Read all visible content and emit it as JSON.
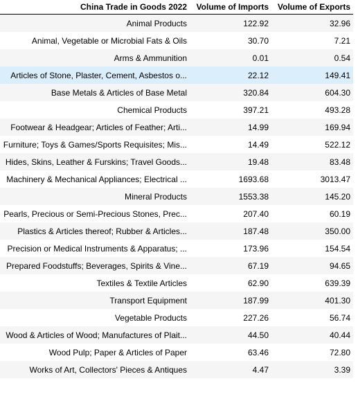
{
  "table": {
    "columns": [
      "China Trade in Goods 2022",
      "Volume of Imports",
      "Volume of Exports"
    ],
    "highlight_row": 3,
    "rows": [
      {
        "name": "Animal Products",
        "imports": "122.92",
        "exports": "32.96"
      },
      {
        "name": "Animal, Vegetable or Microbial Fats & Oils",
        "imports": "30.70",
        "exports": "7.21"
      },
      {
        "name": "Arms & Ammunition",
        "imports": "0.01",
        "exports": "0.54"
      },
      {
        "name": "Articles of Stone, Plaster, Cement, Asbestos o...",
        "imports": "22.12",
        "exports": "149.41"
      },
      {
        "name": "Base Metals & Articles of Base Metal",
        "imports": "320.84",
        "exports": "604.30"
      },
      {
        "name": "Chemical Products",
        "imports": "397.21",
        "exports": "493.28"
      },
      {
        "name": "Footwear & Headgear; Articles of Feather; Arti...",
        "imports": "14.99",
        "exports": "169.94"
      },
      {
        "name": "Furniture; Toys & Games/Sports Requisites; Mis...",
        "imports": "14.49",
        "exports": "522.12"
      },
      {
        "name": "Hides, Skins, Leather & Furskins; Travel Goods...",
        "imports": "19.48",
        "exports": "83.48"
      },
      {
        "name": "Machinery & Mechanical Appliances; Electrical ...",
        "imports": "1693.68",
        "exports": "3013.47"
      },
      {
        "name": "Mineral Products",
        "imports": "1553.38",
        "exports": "145.20"
      },
      {
        "name": "Pearls, Precious or Semi-Precious Stones, Prec...",
        "imports": "207.40",
        "exports": "60.19"
      },
      {
        "name": "Plastics & Articles thereof; Rubber & Articles...",
        "imports": "187.48",
        "exports": "350.00"
      },
      {
        "name": "Precision or Medical Instruments & Apparatus; ...",
        "imports": "173.96",
        "exports": "154.54"
      },
      {
        "name": "Prepared Foodstuffs; Beverages, Spirits & Vine...",
        "imports": "67.19",
        "exports": "94.65"
      },
      {
        "name": "Textiles & Textile Articles",
        "imports": "62.90",
        "exports": "639.39"
      },
      {
        "name": "Transport Equipment",
        "imports": "187.99",
        "exports": "401.30"
      },
      {
        "name": "Vegetable Products",
        "imports": "227.26",
        "exports": "56.74"
      },
      {
        "name": "Wood & Articles of Wood; Manufactures of Plait...",
        "imports": "44.50",
        "exports": "40.44"
      },
      {
        "name": "Wood Pulp; Paper & Articles of Paper",
        "imports": "63.46",
        "exports": "72.80"
      },
      {
        "name": "Works of Art, Collectors' Pieces & Antiques",
        "imports": "4.47",
        "exports": "3.39"
      }
    ]
  }
}
